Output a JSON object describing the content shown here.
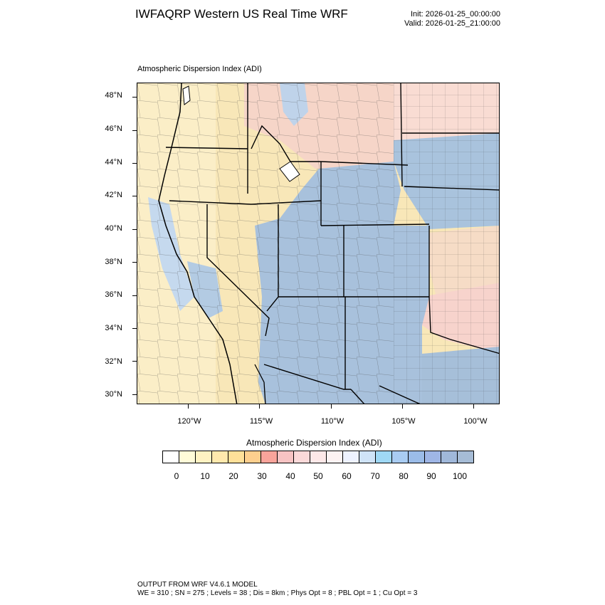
{
  "header": {
    "title": "IWFAQRP Western US Real Time WRF",
    "init": "Init: 2026-01-25_00:00:00",
    "valid": "Valid: 2026-01-25_21:00:00"
  },
  "map": {
    "subtitle": "Atmospheric Dispersion Index   (ADI)",
    "lat_labels": [
      "48°N",
      "46°N",
      "44°N",
      "42°N",
      "40°N",
      "38°N",
      "36°N",
      "34°N",
      "32°N",
      "30°N"
    ],
    "lon_labels": [
      "120°W",
      "115°W",
      "110°W",
      "105°W",
      "100°W"
    ],
    "extent": {
      "west": -123.6,
      "east": -98.2,
      "south": 29.4,
      "north": 48.9
    }
  },
  "colorbar": {
    "title": "Atmospheric Dispersion Index  (ADI)",
    "labels": [
      "0",
      "10",
      "20",
      "30",
      "40",
      "50",
      "60",
      "70",
      "80",
      "90",
      "100"
    ],
    "colors": [
      "#ffffff",
      "#fffbd8",
      "#fff2c2",
      "#ffe9ad",
      "#ffe099",
      "#fdcf8e",
      "#f9a49b",
      "#f7c3c3",
      "#fbd9d9",
      "#fde8e8",
      "#fdf3f3",
      "#eef2ff",
      "#cfe3f7",
      "#9fd8f5",
      "#a9ccf2",
      "#9bbce8",
      "#9fb6e6",
      "#a0b8da",
      "#a6bcd6"
    ]
  },
  "footer": {
    "line1": "OUTPUT FROM WRF V4.6.1 MODEL",
    "line2": "WE = 310 ; SN = 275 ; Levels = 38 ; Dis = 8km ; Phys Opt = 8 ; PBL Opt = 1 ; Cu Opt = 3"
  }
}
